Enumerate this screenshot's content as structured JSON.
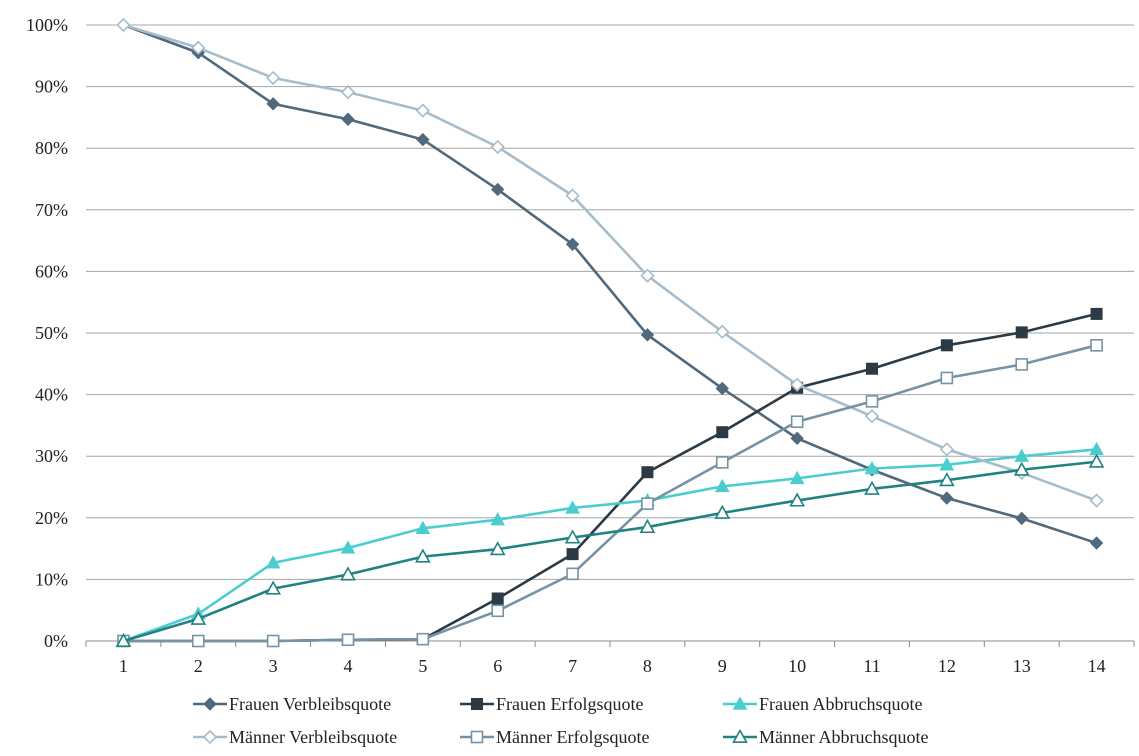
{
  "chart_data": {
    "type": "line",
    "x": [
      1,
      2,
      3,
      4,
      5,
      6,
      7,
      8,
      9,
      10,
      11,
      12,
      13,
      14
    ],
    "ylim": [
      0,
      100
    ],
    "yticks": [
      0,
      10,
      20,
      30,
      40,
      50,
      60,
      70,
      80,
      90,
      100
    ],
    "ytick_labels": [
      "0%",
      "10%",
      "20%",
      "30%",
      "40%",
      "50%",
      "60%",
      "70%",
      "80%",
      "90%",
      "100%"
    ],
    "grid": "horizontal",
    "legend_position": "bottom",
    "series": [
      {
        "name": "Frauen Verbleibsquote",
        "color": "#51697c",
        "marker": "diamond",
        "filled": true,
        "values": [
          100,
          95.5,
          87.2,
          84.7,
          81.4,
          73.3,
          64.4,
          49.7,
          41.0,
          32.9,
          27.8,
          23.2,
          19.9,
          15.9
        ]
      },
      {
        "name": "Frauen Erfolgsquote",
        "color": "#2b3a45",
        "marker": "square",
        "filled": true,
        "values": [
          0,
          0,
          0,
          0.2,
          0.3,
          6.9,
          14.1,
          27.4,
          33.9,
          41.1,
          44.2,
          48.0,
          50.1,
          53.1
        ]
      },
      {
        "name": "Frauen Abbruchsquote",
        "color": "#4ccdcd",
        "marker": "triangle",
        "filled": true,
        "values": [
          0,
          4.4,
          12.7,
          15.1,
          18.3,
          19.7,
          21.6,
          22.8,
          25.1,
          26.4,
          28.0,
          28.6,
          30.0,
          31.1
        ]
      },
      {
        "name": "Männer Verbleibsquote",
        "color": "#a7bccb",
        "marker": "diamond",
        "filled": false,
        "values": [
          100,
          96.3,
          91.4,
          89.1,
          86.1,
          80.2,
          72.3,
          59.3,
          50.2,
          41.6,
          36.5,
          31.1,
          27.3,
          22.8
        ]
      },
      {
        "name": "Männer Erfolgsquote",
        "color": "#7593a5",
        "marker": "square",
        "filled": false,
        "values": [
          0,
          0,
          0,
          0.2,
          0.3,
          4.9,
          10.9,
          22.3,
          29.0,
          35.6,
          38.9,
          42.7,
          44.9,
          48.0
        ]
      },
      {
        "name": "Männer Abbruchsquote",
        "color": "#208282",
        "marker": "triangle",
        "filled": false,
        "values": [
          0,
          3.6,
          8.5,
          10.8,
          13.7,
          14.9,
          16.8,
          18.5,
          20.8,
          22.8,
          24.7,
          26.1,
          27.8,
          29.1
        ]
      }
    ]
  }
}
